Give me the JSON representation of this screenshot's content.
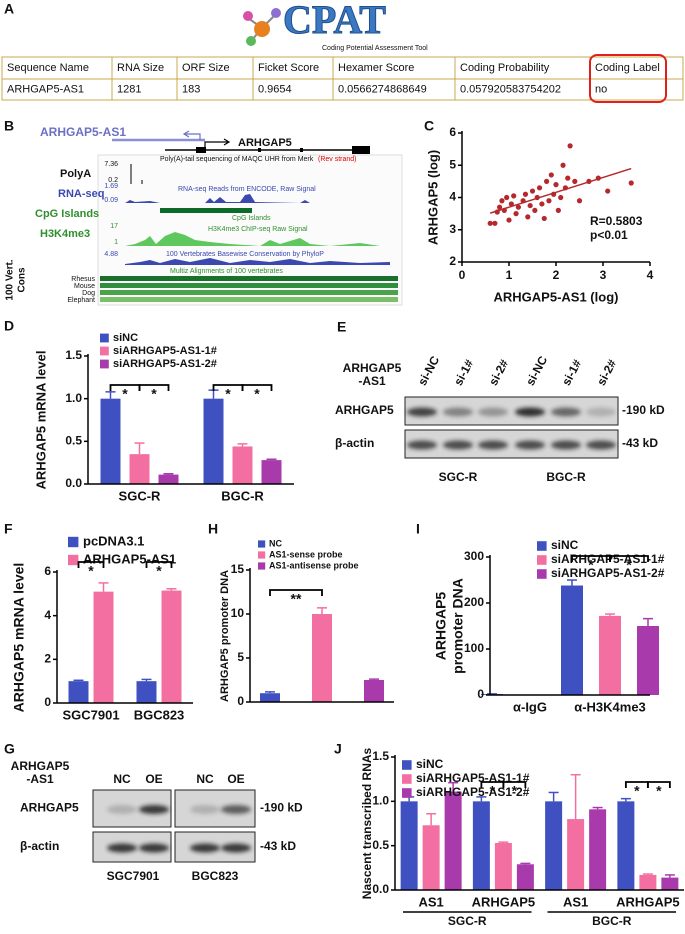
{
  "panel_labels": [
    "A",
    "B",
    "C",
    "D",
    "E",
    "F",
    "G",
    "H",
    "I",
    "J"
  ],
  "cpat": {
    "logo": "CPAT",
    "tagline": "Coding  Potential  Assessment  Tool",
    "table": {
      "header": [
        "Sequence Name",
        "RNA Size",
        "ORF Size",
        "Ficket Score",
        "Hexamer Score",
        "Coding Probability",
        "Coding Label"
      ],
      "rows": [
        [
          "ARHGAP5-AS1",
          "1281",
          "183",
          "0.9654",
          "0.0566274868649",
          "0.057920583754202",
          "no"
        ]
      ]
    }
  },
  "browser": {
    "antisense_gene": "ARHGAP5-AS1",
    "gene": "ARHGAP5",
    "polya_title": "Poly(A)-tail sequencing of MAQC UHR from Merk",
    "polya_strand": "(Rev strand)",
    "tracks": [
      {
        "label": "PolyA",
        "max": 7.36,
        "min": 0.2
      },
      {
        "label": "RNA-seq",
        "max": 1.69,
        "min": 0.09,
        "title": "RNA-seq Reads from ENCODE, Raw Signal"
      },
      {
        "label": "CpG Islands",
        "title": "CpG Islands"
      },
      {
        "label": "H3K4me3",
        "max": 17,
        "min": 1,
        "title": "H3K4me3 ChIP-seq Raw Signal"
      },
      {
        "label": [
          "100 Vert.",
          "Cons"
        ],
        "max": 4.88,
        "title": "100 Vertebrates Basewise Conservation by PhyloP"
      }
    ],
    "multiz_title": "Multiz Alignments of 100 vertebrates",
    "species": [
      "Rhesus",
      "Mouse",
      "Dog",
      "Elephant"
    ]
  },
  "blot_e": {
    "condition": [
      "ARHGAP5",
      "-AS1"
    ],
    "lanes": [
      "si-NC",
      "si-1#",
      "si-2#",
      "si-NC",
      "si-1#",
      "si-2#"
    ],
    "proteins": [
      "ARHGAP5",
      "β-actin"
    ],
    "sizes": [
      "-190 kD",
      "-43 kD"
    ],
    "groups": [
      "SGC-R",
      "BGC-R"
    ]
  },
  "blot_g": {
    "condition": [
      "ARHGAP5",
      "-AS1"
    ],
    "lanes": [
      "NC",
      "OE",
      "NC",
      "OE"
    ],
    "proteins": [
      "ARHGAP5",
      "β-actin"
    ],
    "sizes": [
      "-190 kD",
      "-43 kD"
    ],
    "groups": [
      "SGC7901",
      "BGC823"
    ]
  },
  "chart_data": [
    {
      "type": "scatter",
      "xlabel": "ARHGAP5-AS1 (log)",
      "ylabel": "ARHGAP5 (log)",
      "x": [
        0.6,
        0.7,
        0.75,
        0.8,
        0.85,
        0.9,
        0.95,
        1.0,
        1.05,
        1.1,
        1.15,
        1.2,
        1.3,
        1.35,
        1.4,
        1.45,
        1.5,
        1.55,
        1.6,
        1.65,
        1.7,
        1.75,
        1.8,
        1.85,
        1.9,
        1.95,
        2.0,
        2.05,
        2.1,
        2.15,
        2.2,
        2.25,
        2.3,
        2.4,
        2.5,
        2.7,
        2.9,
        3.1,
        3.6
      ],
      "y": [
        3.2,
        3.2,
        3.55,
        3.7,
        3.9,
        3.6,
        4.0,
        3.3,
        3.8,
        4.05,
        3.5,
        3.7,
        3.9,
        4.1,
        3.4,
        3.75,
        4.2,
        3.6,
        4.0,
        4.3,
        3.8,
        3.35,
        4.5,
        3.9,
        4.7,
        4.1,
        4.4,
        3.6,
        4.0,
        5.0,
        4.3,
        4.6,
        5.6,
        4.5,
        3.9,
        4.5,
        4.6,
        4.2,
        4.45
      ],
      "color": "#b5282c",
      "xlim": [
        0,
        4
      ],
      "xticks": [
        0,
        1,
        2,
        3,
        4
      ],
      "ylim": [
        2,
        6
      ],
      "yticks": [
        2,
        3,
        4,
        5,
        6
      ],
      "annotations": [
        "R=0.5803",
        "p<0.01"
      ],
      "trendline": true
    },
    {
      "type": "bar",
      "ylabel": "ARHGAP5 mRNA level",
      "categories": [
        "SGC-R",
        "BGC-R"
      ],
      "series": [
        {
          "name": "siNC",
          "color": "#3f51c0",
          "values": [
            1.0,
            1.0
          ],
          "errors": [
            0.08,
            0.1
          ]
        },
        {
          "name": "siARHGAP5-AS1-1#",
          "color": "#f46fa1",
          "values": [
            0.35,
            0.44
          ],
          "errors": [
            0.13,
            0.03
          ]
        },
        {
          "name": "siARHGAP5-AS1-2#",
          "color": "#a83aab",
          "values": [
            0.11,
            0.28
          ],
          "errors": [
            0.01,
            0.01
          ]
        }
      ],
      "ylim": [
        0,
        1.5
      ],
      "yticks": [
        {
          "value": 0,
          "label": "0.0"
        },
        0.5,
        {
          "value": 1,
          "label": "1.0"
        },
        1.5
      ],
      "significance": [
        "*",
        "*",
        "*",
        "*"
      ]
    },
    {
      "type": "bar",
      "ylabel": "ARHGAP5 mRNA level",
      "categories": [
        "SGC7901",
        "BGC823"
      ],
      "series": [
        {
          "name": "pcDNA3.1",
          "color": "#3f51c0",
          "values": [
            1.0,
            1.0
          ],
          "errors": [
            0.04,
            0.08
          ]
        },
        {
          "name": "ARHGAP5-AS1",
          "color": "#f46fa1",
          "values": [
            5.1,
            5.15
          ],
          "errors": [
            0.4,
            0.08
          ]
        }
      ],
      "ylim": [
        0,
        6
      ],
      "yticks": [
        0,
        2,
        4,
        6
      ],
      "significance": [
        "*",
        "*"
      ]
    },
    {
      "type": "bar",
      "ylabel": "ARHGAP5 promoter DNA",
      "categories": [
        null
      ],
      "series": [
        {
          "name": "NC",
          "color": "#3f51c0",
          "values": [
            1.0
          ],
          "errors": [
            0.15
          ]
        },
        {
          "name": "AS1-sense probe",
          "color": "#f46fa1",
          "values": [
            10.0
          ],
          "errors": [
            0.7
          ]
        },
        {
          "name": "AS1-antisense probe",
          "color": "#a83aab",
          "values": [
            2.5
          ],
          "errors": [
            0.1
          ]
        }
      ],
      "ylim": [
        0,
        15
      ],
      "yticks": [
        0,
        5,
        10,
        15
      ],
      "significance": [
        "**"
      ]
    },
    {
      "type": "bar",
      "ylabel": [
        "ARHGAP5",
        "promoter DNA"
      ],
      "categories": [
        "α-IgG",
        "α-H3K4me3"
      ],
      "series": [
        {
          "name": "siNC",
          "color": "#3f51c0",
          "values": [
            2,
            238
          ],
          "errors": [
            0.5,
            12
          ]
        },
        {
          "name": "siARHGAP5-AS1-1#",
          "color": "#f46fa1",
          "values": [
            null,
            172
          ],
          "errors": [
            null,
            4
          ]
        },
        {
          "name": "siARHGAP5-AS1-2#",
          "color": "#a83aab",
          "values": [
            null,
            150
          ],
          "errors": [
            null,
            16
          ]
        }
      ],
      "ylim": [
        0,
        300
      ],
      "yticks": [
        0,
        100,
        200,
        300
      ],
      "significance": [
        "*",
        "*"
      ]
    },
    {
      "type": "bar",
      "ylabel": "Nascent transcribed RNAs",
      "categories": [
        "AS1",
        "ARHGAP5",
        "AS1",
        "ARHGAP5"
      ],
      "groups": [
        "SGC-R",
        "BGC-R"
      ],
      "series": [
        {
          "name": "siNC",
          "color": "#3f51c0",
          "values": [
            1.0,
            1.0,
            1.0,
            1.0
          ],
          "errors": [
            0.05,
            0.05,
            0.1,
            0.03
          ]
        },
        {
          "name": "siARHGAP5-AS1-1#",
          "color": "#f46fa1",
          "values": [
            0.73,
            0.53,
            0.8,
            0.17
          ],
          "errors": [
            0.13,
            0.01,
            0.5,
            0.01
          ]
        },
        {
          "name": "siARHGAP5-AS1-2#",
          "color": "#a83aab",
          "values": [
            1.11,
            0.29,
            0.91,
            0.14
          ],
          "errors": [
            0.1,
            0.01,
            0.02,
            0.03
          ]
        }
      ],
      "ylim": [
        0,
        1.5
      ],
      "yticks": [
        {
          "value": 0,
          "label": "0.0"
        },
        0.5,
        {
          "value": 1,
          "label": "1.0"
        },
        1.5
      ],
      "significance": [
        "*",
        "*",
        "*",
        "*"
      ]
    }
  ]
}
